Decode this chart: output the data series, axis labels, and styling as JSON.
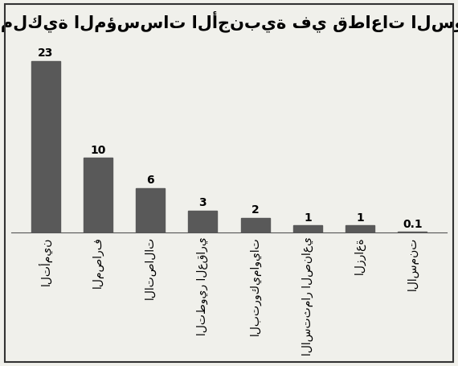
{
  "title": "نسب ملكية المؤسسات الأجنبية في قطاعات السوق (%)",
  "categories": [
    "التأمين",
    "المصارف",
    "الاتصالات",
    "التطوير العقاري",
    "البتروكيماويات",
    "الاستثمار الصناعي",
    "الزراعة",
    "الاسمنت"
  ],
  "values": [
    23,
    10,
    6,
    3,
    2,
    1,
    1,
    0.1
  ],
  "bar_color": "#595959",
  "bar_edge_color": "#595959",
  "background_color": "#f0f0eb",
  "ylim": [
    0,
    26
  ],
  "title_fontsize": 15,
  "label_fontsize": 10,
  "value_fontsize": 10
}
